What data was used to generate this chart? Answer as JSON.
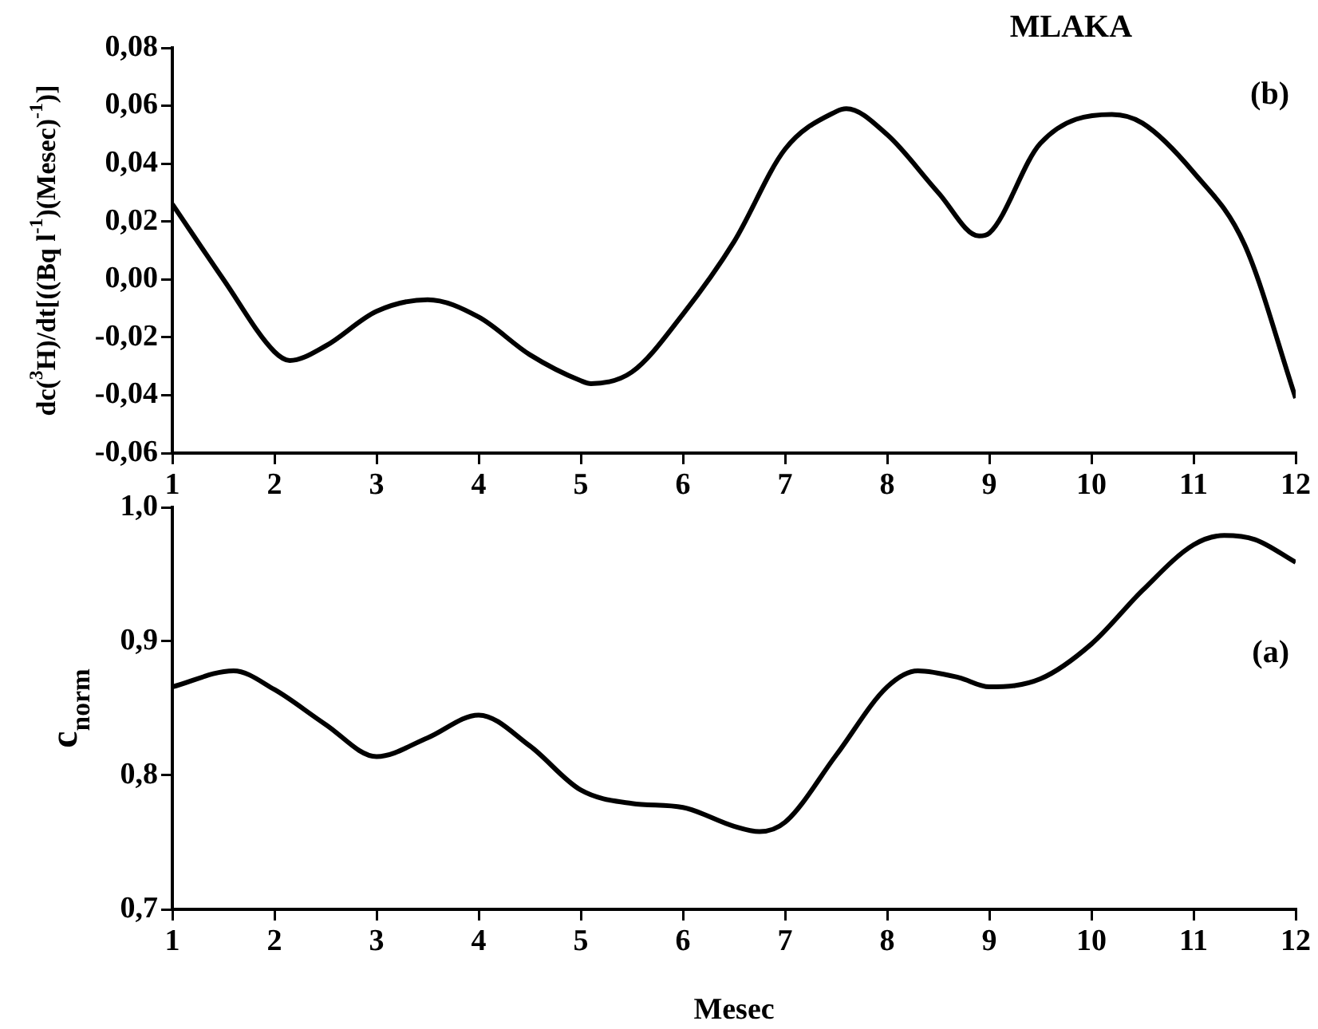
{
  "chart_data": [
    {
      "type": "line",
      "title": "MLAKA",
      "ylabel": "dc($^{3}$H)/dt[((Bq l$^{-1}$)(Mesec)$^{-1}$)]",
      "annotations": [
        "(b)"
      ],
      "x": [
        1,
        1.5,
        2,
        2.15,
        2.5,
        3,
        3.5,
        4,
        4.5,
        5,
        5.1,
        5.5,
        6,
        6.5,
        7,
        7.5,
        7.6,
        8,
        8.5,
        8.9,
        9,
        9.5,
        10.2,
        10.5,
        11,
        11.5,
        12
      ],
      "series": [
        {
          "color": "#000000",
          "values": [
            0.026,
            0.0,
            -0.025,
            -0.028,
            -0.023,
            -0.011,
            -0.007,
            -0.013,
            -0.026,
            -0.035,
            -0.036,
            -0.032,
            -0.012,
            0.013,
            0.045,
            0.058,
            0.059,
            0.05,
            0.03,
            0.015,
            0.016,
            0.047,
            0.057,
            0.054,
            0.037,
            0.012,
            -0.041
          ]
        }
      ],
      "xlim": [
        1,
        12
      ],
      "xticks": [
        1,
        2,
        3,
        4,
        5,
        6,
        7,
        8,
        9,
        10,
        11,
        12
      ],
      "ylim": [
        -0.06,
        0.08
      ],
      "yticks": [
        {
          "value": -0.06,
          "label": "-0,06"
        },
        {
          "value": -0.04,
          "label": "-0,04"
        },
        {
          "value": -0.02,
          "label": "-0,02"
        },
        {
          "value": 0,
          "label": "0,00"
        },
        {
          "value": 0.02,
          "label": "0,02"
        },
        {
          "value": 0.04,
          "label": "0,04"
        },
        {
          "value": 0.06,
          "label": "0,06"
        },
        {
          "value": 0.08,
          "label": "0,08"
        }
      ],
      "grid": false,
      "legend": false,
      "marker": "none",
      "line_style": "solid"
    },
    {
      "type": "line",
      "xlabel": "Mesec",
      "ylabel": "c$_{norm}$",
      "annotations": [
        "(a)"
      ],
      "x": [
        1,
        1.6,
        2,
        2.5,
        3,
        3.5,
        4,
        4.5,
        5,
        5.5,
        6,
        6.5,
        6.75,
        7,
        7.5,
        8,
        8.3,
        8.7,
        9,
        9.5,
        10,
        10.5,
        11,
        11.3,
        11.6,
        12
      ],
      "series": [
        {
          "color": "#000000",
          "values": [
            0.866,
            0.878,
            0.864,
            0.838,
            0.814,
            0.828,
            0.845,
            0.822,
            0.789,
            0.779,
            0.776,
            0.762,
            0.758,
            0.765,
            0.815,
            0.866,
            0.878,
            0.873,
            0.866,
            0.872,
            0.898,
            0.938,
            0.972,
            0.979,
            0.976,
            0.959
          ]
        }
      ],
      "xlim": [
        1,
        12
      ],
      "xticks": [
        1,
        2,
        3,
        4,
        5,
        6,
        7,
        8,
        9,
        10,
        11,
        12
      ],
      "ylim": [
        0.7,
        1.0
      ],
      "yticks": [
        {
          "value": 0.7,
          "label": "0,7"
        },
        {
          "value": 0.8,
          "label": "0,8"
        },
        {
          "value": 0.9,
          "label": "0,9"
        },
        {
          "value": 1.0,
          "label": "1,0"
        }
      ],
      "grid": false,
      "legend": false,
      "marker": "none",
      "line_style": "solid"
    }
  ]
}
